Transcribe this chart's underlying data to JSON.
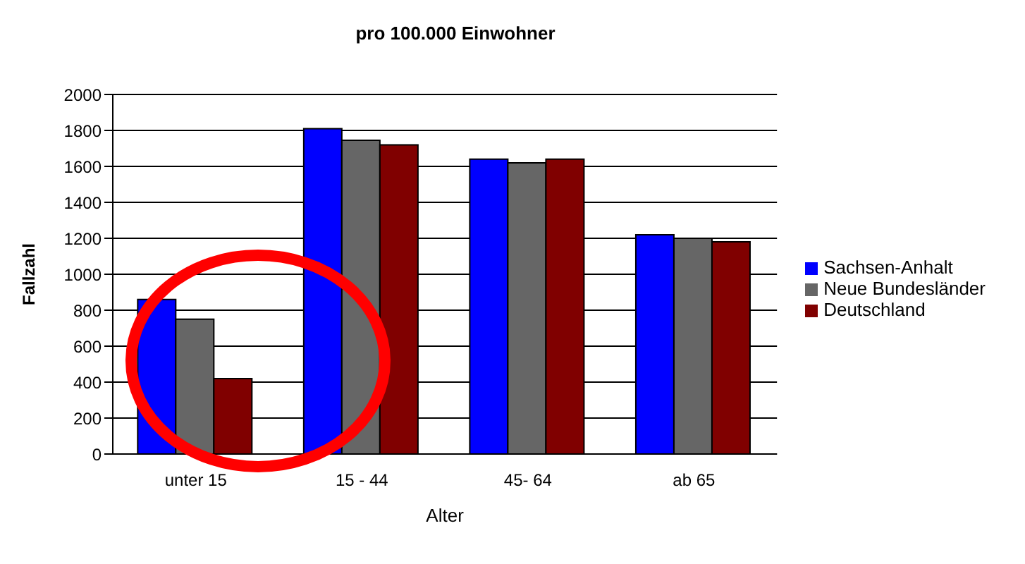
{
  "chart_data": {
    "type": "bar",
    "title": "pro 100.000 Einwohner",
    "xlabel": "Alter",
    "ylabel": "Fallzahl",
    "categories": [
      "unter 15",
      "15 - 44",
      "45- 64",
      "ab 65"
    ],
    "series": [
      {
        "name": "Sachsen-Anhalt",
        "color": "#0000ff",
        "values": [
          860,
          1810,
          1640,
          1220
        ]
      },
      {
        "name": "Neue Bundesländer",
        "color": "#666666",
        "values": [
          750,
          1745,
          1620,
          1200
        ]
      },
      {
        "name": "Deutschland",
        "color": "#800000",
        "values": [
          420,
          1720,
          1640,
          1180
        ]
      }
    ],
    "ylim": [
      0,
      2000
    ],
    "yticks": [
      0,
      200,
      400,
      600,
      800,
      1000,
      1200,
      1400,
      1600,
      1800,
      2000
    ],
    "grid": "y",
    "legend": "right"
  }
}
